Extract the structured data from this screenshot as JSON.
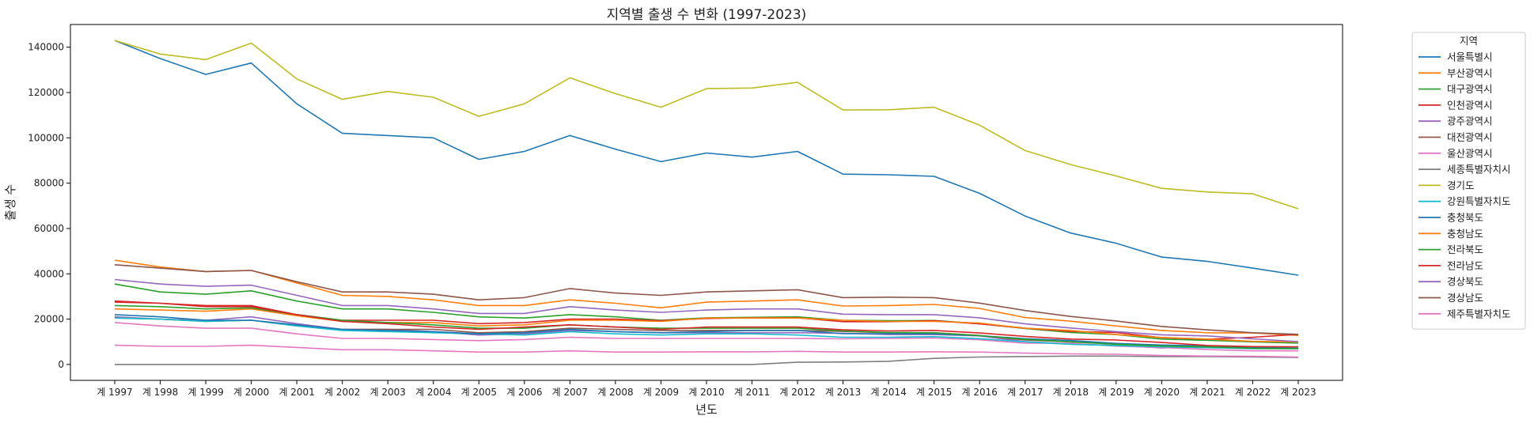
{
  "chart_data": {
    "type": "line",
    "title": "지역별 출생 수 변화 (1997-2023)",
    "xlabel": "년도",
    "ylabel": "출생 수",
    "categories": [
      "계 1997",
      "계 1998",
      "계 1999",
      "계 2000",
      "계 2001",
      "계 2002",
      "계 2003",
      "계 2004",
      "계 2005",
      "계 2006",
      "계 2007",
      "계 2008",
      "계 2009",
      "계 2010",
      "계 2011",
      "계 2012",
      "계 2013",
      "계 2014",
      "계 2015",
      "계 2016",
      "계 2017",
      "계 2018",
      "계 2019",
      "계 2020",
      "계 2021",
      "계 2022",
      "계 2023"
    ],
    "ylim": [
      -7000,
      150000
    ],
    "yticks": [
      0,
      20000,
      40000,
      60000,
      80000,
      100000,
      120000,
      140000
    ],
    "grid": false,
    "legend": {
      "title": "지역",
      "placement": "outside-top-right"
    },
    "series": [
      {
        "name": "서울특별시",
        "color": "#1f77b4",
        "values": [
          143000,
          135000,
          128000,
          133000,
          115000,
          102000,
          101000,
          100000,
          90500,
          94000,
          101000,
          95000,
          89500,
          93300,
          91500,
          94000,
          84000,
          83700,
          83000,
          75500,
          65500,
          58000,
          53500,
          47400,
          45500,
          42500,
          39400
        ]
      },
      {
        "name": "부산광역시",
        "color": "#ff7f0e",
        "values": [
          46000,
          43000,
          41000,
          41500,
          36000,
          30500,
          30000,
          28500,
          26000,
          26000,
          28500,
          27000,
          25000,
          27500,
          28000,
          28500,
          25800,
          26000,
          26500,
          24700,
          20700,
          19100,
          17000,
          15000,
          14000,
          13900,
          12800
        ]
      },
      {
        "name": "대구광역시",
        "color": "#2ca02c",
        "values": [
          35500,
          32000,
          31000,
          32500,
          28000,
          24500,
          24500,
          23000,
          21000,
          20500,
          22000,
          21000,
          19500,
          20600,
          20800,
          21000,
          19500,
          19300,
          19400,
          18000,
          15900,
          14100,
          13200,
          11200,
          10700,
          10000,
          9400
        ]
      },
      {
        "name": "인천광역시",
        "color": "#d62728",
        "values": [
          28000,
          27000,
          26000,
          26000,
          22000,
          19500,
          19500,
          19500,
          18000,
          18500,
          20000,
          20000,
          19300,
          20300,
          20600,
          20600,
          18900,
          18900,
          19300,
          17900,
          16000,
          14600,
          14100,
          11800,
          11100,
          12000,
          13300
        ]
      },
      {
        "name": "광주광역시",
        "color": "#9467bd",
        "values": [
          21000,
          20000,
          19500,
          21000,
          18000,
          15500,
          15500,
          14500,
          13000,
          13500,
          15000,
          14500,
          14000,
          14000,
          14000,
          14000,
          13800,
          13200,
          13200,
          12600,
          10100,
          9100,
          8400,
          7300,
          7900,
          7300,
          7100
        ]
      },
      {
        "name": "대전광역시",
        "color": "#8c564b",
        "values": [
          20500,
          20000,
          19000,
          19500,
          17000,
          15500,
          15500,
          15500,
          14000,
          14500,
          16000,
          15500,
          15000,
          15000,
          15000,
          15000,
          14600,
          14000,
          14000,
          12800,
          10800,
          10000,
          9300,
          8000,
          7400,
          7700,
          7200
        ]
      },
      {
        "name": "울산광역시",
        "color": "#e377c2",
        "values": [
          18500,
          17000,
          16000,
          16000,
          13500,
          11500,
          11500,
          11000,
          10500,
          11000,
          12000,
          11500,
          11500,
          11500,
          11500,
          11500,
          11300,
          11500,
          11700,
          10900,
          9400,
          9400,
          8100,
          7500,
          6600,
          6000,
          6000
        ]
      },
      {
        "name": "세종특별자치시",
        "color": "#7f7f7f",
        "values": [
          0,
          0,
          0,
          0,
          0,
          0,
          0,
          0,
          0,
          0,
          0,
          0,
          0,
          0,
          0,
          1000,
          1100,
          1400,
          2700,
          3300,
          3500,
          3700,
          3700,
          3500,
          3500,
          3300,
          3100
        ]
      },
      {
        "name": "경기도",
        "color": "#bcbd22",
        "values": [
          143000,
          137000,
          134500,
          141800,
          126000,
          117000,
          120500,
          117900,
          109500,
          115000,
          126500,
          119500,
          113500,
          121700,
          122000,
          124500,
          112300,
          112400,
          113500,
          105600,
          94400,
          88200,
          83200,
          77700,
          76100,
          75300,
          68700
        ]
      },
      {
        "name": "강원특별자치도",
        "color": "#17becf",
        "values": [
          20500,
          20000,
          19000,
          19500,
          17000,
          15000,
          14500,
          14000,
          13500,
          13000,
          14500,
          13500,
          13000,
          13500,
          13500,
          13000,
          12000,
          12000,
          12300,
          11400,
          10000,
          8900,
          8300,
          7800,
          7400,
          7000,
          7000
        ]
      },
      {
        "name": "충청북도",
        "color": "#1f77b4",
        "values": [
          22000,
          21000,
          19500,
          19500,
          17500,
          15500,
          15000,
          14500,
          13500,
          14000,
          15500,
          14500,
          14000,
          14500,
          15000,
          15000,
          13600,
          13600,
          13500,
          12700,
          11400,
          10600,
          9300,
          8600,
          8200,
          7500,
          7200
        ]
      },
      {
        "name": "충청남도",
        "color": "#ff7f0e",
        "values": [
          24500,
          24000,
          23500,
          24500,
          21500,
          19000,
          18500,
          18500,
          17000,
          17500,
          19500,
          19500,
          19000,
          20500,
          20500,
          20500,
          19500,
          19000,
          19000,
          18300,
          16000,
          15000,
          13200,
          11900,
          11200,
          10200,
          10000
        ]
      },
      {
        "name": "전라북도",
        "color": "#2ca02c",
        "values": [
          26000,
          25500,
          24500,
          25000,
          22000,
          19500,
          18500,
          17500,
          16000,
          16000,
          17500,
          16500,
          16000,
          16000,
          16000,
          16000,
          14800,
          14100,
          14000,
          12700,
          11100,
          10000,
          8900,
          8200,
          7800,
          7100,
          7000
        ]
      },
      {
        "name": "전라남도",
        "color": "#d62728",
        "values": [
          27500,
          27000,
          25500,
          25500,
          22000,
          19000,
          18000,
          16500,
          15500,
          16500,
          17500,
          16500,
          15500,
          16500,
          16500,
          16500,
          15300,
          14800,
          15000,
          13900,
          12400,
          11200,
          10800,
          9700,
          8400,
          7900,
          7800
        ]
      },
      {
        "name": "경상북도",
        "color": "#9467bd",
        "values": [
          37500,
          35500,
          34500,
          35000,
          30500,
          26000,
          26000,
          24500,
          22500,
          22500,
          25500,
          24000,
          23000,
          24000,
          24500,
          24500,
          22200,
          22000,
          22000,
          20600,
          17900,
          16100,
          14500,
          13100,
          12600,
          11300,
          10100
        ]
      },
      {
        "name": "경상남도",
        "color": "#8c564b",
        "values": [
          44000,
          42500,
          41000,
          41500,
          36500,
          32000,
          32000,
          31000,
          28500,
          29500,
          33500,
          31500,
          30500,
          32000,
          32500,
          33000,
          29500,
          29700,
          29500,
          27100,
          23800,
          21200,
          19200,
          16800,
          15300,
          14000,
          13300
        ]
      },
      {
        "name": "제주특별자치도",
        "color": "#e377c2",
        "values": [
          8500,
          8000,
          8000,
          8500,
          7500,
          6500,
          6500,
          6000,
          5500,
          5500,
          6000,
          5500,
          5500,
          5600,
          5600,
          5800,
          5500,
          5500,
          5600,
          5500,
          5000,
          4700,
          4500,
          4000,
          3700,
          3600,
          3300
        ]
      }
    ]
  }
}
